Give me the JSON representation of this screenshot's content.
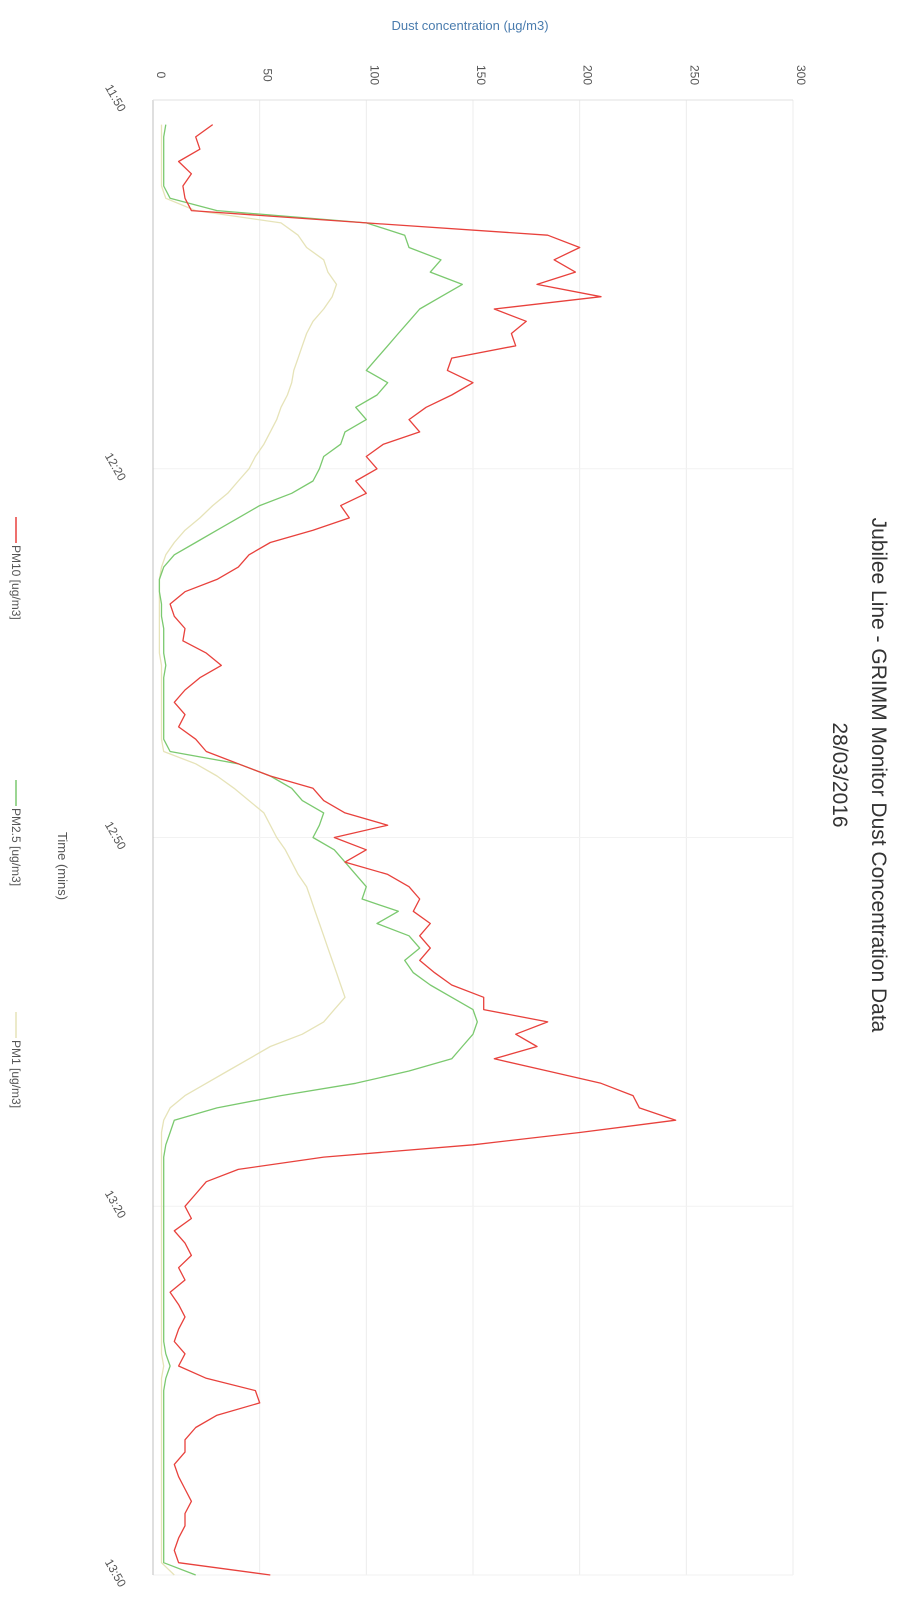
{
  "chart_data": {
    "type": "line",
    "orientation": "rotated-90-clockwise",
    "title": "Jubilee Line - GRIMM Monitor Dust Concentration Data",
    "subtitle": "28/03/2016",
    "xlabel": "Time (mins)",
    "ylabel": "Dust concentration  (µg/m3)",
    "ylim": [
      0,
      300
    ],
    "y_ticks": [
      "0",
      "50",
      "100",
      "150",
      "200",
      "250",
      "300"
    ],
    "xlim": [
      0,
      120
    ],
    "x_ticks": [
      {
        "value": 0,
        "label": "11:50"
      },
      {
        "value": 30,
        "label": "12:20"
      },
      {
        "value": 60,
        "label": "12:50"
      },
      {
        "value": 90,
        "label": "13:20"
      },
      {
        "value": 120,
        "label": "13:50"
      }
    ],
    "grid": true,
    "legend_position": "bottom",
    "series": [
      {
        "name": "PM10 [ug/m3]",
        "color": "#e8413c",
        "x": [
          2,
          3,
          4,
          5,
          6,
          7,
          8,
          9,
          10,
          11,
          12,
          13,
          14,
          15,
          16,
          17,
          18,
          19,
          20,
          21,
          22,
          23,
          24,
          25,
          26,
          27,
          28,
          29,
          30,
          31,
          32,
          33,
          34,
          35,
          36,
          37,
          38,
          39,
          40,
          41,
          42,
          43,
          44,
          45,
          46,
          47,
          48,
          49,
          50,
          51,
          52,
          53,
          54,
          55,
          56,
          57,
          58,
          59,
          60,
          61,
          62,
          63,
          64,
          65,
          66,
          67,
          68,
          69,
          70,
          71,
          72,
          73,
          74,
          75,
          76,
          77,
          78,
          79,
          80,
          81,
          82,
          83,
          84,
          85,
          86,
          87,
          88,
          89,
          90,
          91,
          92,
          93,
          94,
          95,
          96,
          97,
          98,
          99,
          100,
          101,
          102,
          103,
          104,
          105,
          106,
          107,
          108,
          109,
          110,
          111,
          112,
          113,
          114,
          115,
          116,
          117,
          118,
          119,
          120
        ],
        "values": [
          28,
          20,
          22,
          12,
          18,
          14,
          15,
          18,
          100,
          185,
          200,
          188,
          198,
          180,
          210,
          160,
          175,
          168,
          170,
          140,
          138,
          150,
          140,
          128,
          120,
          125,
          108,
          100,
          105,
          95,
          100,
          88,
          92,
          75,
          55,
          45,
          40,
          30,
          15,
          8,
          10,
          15,
          14,
          25,
          32,
          22,
          15,
          10,
          15,
          12,
          20,
          25,
          40,
          55,
          75,
          80,
          90,
          110,
          85,
          100,
          90,
          110,
          120,
          125,
          122,
          130,
          125,
          130,
          125,
          132,
          140,
          155,
          155,
          185,
          170,
          180,
          160,
          185,
          210,
          225,
          228,
          245,
          200,
          150,
          80,
          40,
          25,
          20,
          15,
          18,
          10,
          15,
          18,
          12,
          15,
          8,
          12,
          15,
          12,
          10,
          15,
          12,
          25,
          48,
          50,
          30,
          20,
          15,
          15,
          10,
          12,
          15,
          18,
          15,
          15,
          12,
          10,
          12,
          55
        ]
      },
      {
        "name": "PM2.5 [ug/m3]",
        "color": "#7bc96f",
        "x": [
          2,
          3,
          4,
          5,
          6,
          7,
          8,
          9,
          10,
          11,
          12,
          13,
          14,
          15,
          16,
          17,
          18,
          19,
          20,
          21,
          22,
          23,
          24,
          25,
          26,
          27,
          28,
          29,
          30,
          31,
          32,
          33,
          34,
          35,
          36,
          37,
          38,
          39,
          40,
          41,
          42,
          43,
          44,
          45,
          46,
          47,
          48,
          49,
          50,
          51,
          52,
          53,
          54,
          55,
          56,
          57,
          58,
          59,
          60,
          61,
          62,
          63,
          64,
          65,
          66,
          67,
          68,
          69,
          70,
          71,
          72,
          73,
          74,
          75,
          76,
          77,
          78,
          79,
          80,
          81,
          82,
          83,
          84,
          85,
          86,
          87,
          88,
          89,
          90,
          91,
          92,
          93,
          94,
          95,
          96,
          97,
          98,
          99,
          100,
          101,
          102,
          103,
          104,
          105,
          106,
          107,
          108,
          109,
          110,
          111,
          112,
          113,
          114,
          115,
          116,
          117,
          118,
          119,
          120
        ],
        "values": [
          6,
          5,
          5,
          5,
          5,
          5,
          8,
          30,
          100,
          118,
          120,
          135,
          130,
          145,
          135,
          125,
          120,
          115,
          110,
          105,
          100,
          110,
          105,
          95,
          100,
          90,
          88,
          80,
          78,
          75,
          65,
          50,
          40,
          30,
          20,
          10,
          5,
          3,
          3,
          4,
          4,
          5,
          5,
          5,
          6,
          5,
          5,
          5,
          5,
          5,
          5,
          8,
          40,
          55,
          65,
          70,
          80,
          78,
          75,
          85,
          90,
          95,
          100,
          98,
          115,
          105,
          120,
          125,
          118,
          122,
          130,
          140,
          150,
          152,
          150,
          145,
          140,
          120,
          95,
          60,
          30,
          10,
          8,
          6,
          5,
          5,
          5,
          5,
          5,
          5,
          5,
          5,
          5,
          5,
          5,
          5,
          5,
          5,
          5,
          5,
          6,
          8,
          6,
          5,
          5,
          5,
          5,
          5,
          5,
          5,
          5,
          5,
          5,
          5,
          5,
          5,
          5,
          5,
          20
        ]
      },
      {
        "name": "PM1 [ug/m3]",
        "color": "#e6e3b8",
        "x": [
          2,
          3,
          4,
          5,
          6,
          7,
          8,
          9,
          10,
          11,
          12,
          13,
          14,
          15,
          16,
          17,
          18,
          19,
          20,
          21,
          22,
          23,
          24,
          25,
          26,
          27,
          28,
          29,
          30,
          31,
          32,
          33,
          34,
          35,
          36,
          37,
          38,
          39,
          40,
          41,
          42,
          43,
          44,
          45,
          46,
          47,
          48,
          49,
          50,
          51,
          52,
          53,
          54,
          55,
          56,
          57,
          58,
          59,
          60,
          61,
          62,
          63,
          64,
          65,
          66,
          67,
          68,
          69,
          70,
          71,
          72,
          73,
          74,
          75,
          76,
          77,
          78,
          79,
          80,
          81,
          82,
          83,
          84,
          85,
          86,
          87,
          88,
          89,
          90,
          91,
          92,
          93,
          94,
          95,
          96,
          97,
          98,
          99,
          100,
          101,
          102,
          103,
          104,
          105,
          106,
          107,
          108,
          109,
          110,
          111,
          112,
          113,
          114,
          115,
          116,
          117,
          118,
          119,
          120
        ],
        "values": [
          4,
          4,
          4,
          4,
          4,
          4,
          6,
          20,
          60,
          68,
          72,
          80,
          82,
          86,
          84,
          80,
          75,
          72,
          70,
          68,
          66,
          65,
          63,
          60,
          58,
          55,
          52,
          48,
          45,
          40,
          35,
          28,
          22,
          15,
          10,
          6,
          4,
          3,
          3,
          3,
          3,
          3,
          3,
          3,
          4,
          4,
          4,
          4,
          4,
          4,
          4,
          5,
          20,
          30,
          38,
          45,
          52,
          55,
          58,
          62,
          65,
          68,
          72,
          74,
          76,
          78,
          80,
          82,
          84,
          86,
          88,
          90,
          85,
          80,
          70,
          55,
          45,
          35,
          25,
          15,
          8,
          5,
          4,
          4,
          4,
          4,
          4,
          4,
          4,
          4,
          4,
          4,
          4,
          4,
          4,
          4,
          4,
          4,
          4,
          4,
          4,
          5,
          4,
          4,
          4,
          4,
          4,
          4,
          4,
          4,
          4,
          4,
          4,
          4,
          4,
          4,
          4,
          4,
          10
        ]
      }
    ]
  }
}
